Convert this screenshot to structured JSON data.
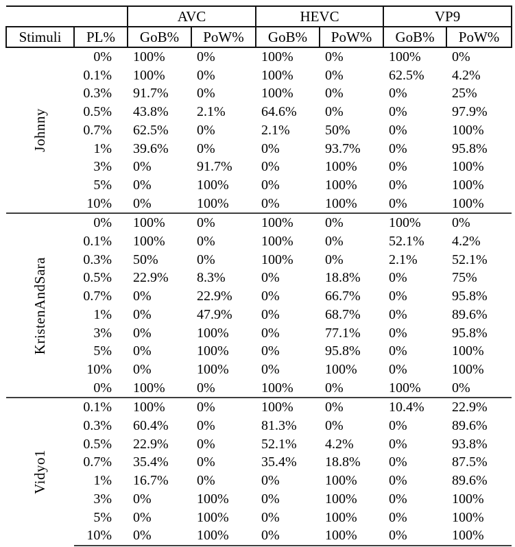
{
  "header": {
    "codecs": [
      "AVC",
      "HEVC",
      "VP9"
    ],
    "stimuli_label": "Stimuli",
    "pl_label": "PL%",
    "metric_labels": [
      "GoB%",
      "PoW%"
    ]
  },
  "colors": {
    "text": "#000000",
    "background": "#ffffff",
    "header_border": "#111111",
    "separator": "#3d3d3d"
  },
  "groups": [
    {
      "stimulus": "Johnny",
      "rows": [
        {
          "pl": "0%",
          "values": [
            "100%",
            "0%",
            "100%",
            "0%",
            "100%",
            "0%"
          ]
        },
        {
          "pl": "0.1%",
          "values": [
            "100%",
            "0%",
            "100%",
            "0%",
            "62.5%",
            "4.2%"
          ]
        },
        {
          "pl": "0.3%",
          "values": [
            "91.7%",
            "0%",
            "100%",
            "0%",
            "0%",
            "25%"
          ]
        },
        {
          "pl": "0.5%",
          "values": [
            "43.8%",
            "2.1%",
            "64.6%",
            "0%",
            "0%",
            "97.9%"
          ]
        },
        {
          "pl": "0.7%",
          "values": [
            "62.5%",
            "0%",
            "2.1%",
            "50%",
            "0%",
            "100%"
          ]
        },
        {
          "pl": "1%",
          "values": [
            "39.6%",
            "0%",
            "0%",
            "93.7%",
            "0%",
            "95.8%"
          ]
        },
        {
          "pl": "3%",
          "values": [
            "0%",
            "91.7%",
            "0%",
            "100%",
            "0%",
            "100%"
          ]
        },
        {
          "pl": "5%",
          "values": [
            "0%",
            "100%",
            "0%",
            "100%",
            "0%",
            "100%"
          ]
        },
        {
          "pl": "10%",
          "values": [
            "0%",
            "100%",
            "0%",
            "100%",
            "0%",
            "100%"
          ]
        }
      ]
    },
    {
      "stimulus": "KristenAndSara",
      "rows": [
        {
          "pl": "0%",
          "values": [
            "100%",
            "0%",
            "100%",
            "0%",
            "100%",
            "0%"
          ]
        },
        {
          "pl": "0.1%",
          "values": [
            "100%",
            "0%",
            "100%",
            "0%",
            "52.1%",
            "4.2%"
          ]
        },
        {
          "pl": "0.3%",
          "values": [
            "50%",
            "0%",
            "100%",
            "0%",
            "2.1%",
            "52.1%"
          ]
        },
        {
          "pl": "0.5%",
          "values": [
            "22.9%",
            "8.3%",
            "0%",
            "18.8%",
            "0%",
            "75%"
          ]
        },
        {
          "pl": "0.7%",
          "values": [
            "0%",
            "22.9%",
            "0%",
            "66.7%",
            "0%",
            "95.8%"
          ]
        },
        {
          "pl": "1%",
          "values": [
            "0%",
            "47.9%",
            "0%",
            "68.7%",
            "0%",
            "89.6%"
          ]
        },
        {
          "pl": "3%",
          "values": [
            "0%",
            "100%",
            "0%",
            "77.1%",
            "0%",
            "95.8%"
          ]
        },
        {
          "pl": "5%",
          "values": [
            "0%",
            "100%",
            "0%",
            "95.8%",
            "0%",
            "100%"
          ]
        },
        {
          "pl": "10%",
          "values": [
            "0%",
            "100%",
            "0%",
            "100%",
            "0%",
            "100%"
          ]
        },
        {
          "pl": "0%",
          "values": [
            "100%",
            "0%",
            "100%",
            "0%",
            "100%",
            "0%"
          ]
        }
      ]
    },
    {
      "stimulus": "Vidyo1",
      "rows": [
        {
          "pl": "0.1%",
          "values": [
            "100%",
            "0%",
            "100%",
            "0%",
            "10.4%",
            "22.9%"
          ]
        },
        {
          "pl": "0.3%",
          "values": [
            "60.4%",
            "0%",
            "81.3%",
            "0%",
            "0%",
            "89.6%"
          ]
        },
        {
          "pl": "0.5%",
          "values": [
            "22.9%",
            "0%",
            "52.1%",
            "4.2%",
            "0%",
            "93.8%"
          ]
        },
        {
          "pl": "0.7%",
          "values": [
            "35.4%",
            "0%",
            "35.4%",
            "18.8%",
            "0%",
            "87.5%"
          ]
        },
        {
          "pl": "1%",
          "values": [
            "16.7%",
            "0%",
            "0%",
            "100%",
            "0%",
            "89.6%"
          ]
        },
        {
          "pl": "3%",
          "values": [
            "0%",
            "100%",
            "0%",
            "100%",
            "0%",
            "100%"
          ]
        },
        {
          "pl": "5%",
          "values": [
            "0%",
            "100%",
            "0%",
            "100%",
            "0%",
            "100%"
          ]
        },
        {
          "pl": "10%",
          "values": [
            "0%",
            "100%",
            "0%",
            "100%",
            "0%",
            "100%"
          ]
        }
      ]
    }
  ]
}
